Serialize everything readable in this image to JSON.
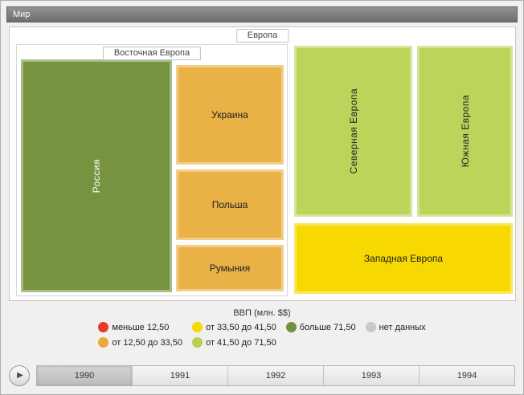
{
  "window": {
    "root_label": "Мир"
  },
  "treemap": {
    "region_label": "Европа",
    "eastern_label": "Восточная Европа",
    "tiles": {
      "russia": {
        "label": "Россия",
        "color": "#76943f"
      },
      "ukraine": {
        "label": "Украина",
        "color": "#eab146"
      },
      "poland": {
        "label": "Польша",
        "color": "#eab146"
      },
      "romania": {
        "label": "Румыния",
        "color": "#eab146"
      },
      "northern": {
        "label": "Северная Европа",
        "color": "#bdd45b"
      },
      "southern": {
        "label": "Южная Европа",
        "color": "#bdd45b"
      },
      "western": {
        "label": "Западная Европа",
        "color": "#f7d800"
      }
    }
  },
  "legend": {
    "title": "ВВП (млн. $$)",
    "items": [
      {
        "label": "меньше 12,50",
        "color": "#e63b2a"
      },
      {
        "label": "от 12,50 до 33,50",
        "color": "#e9a93c"
      },
      {
        "label": "от 33,50 до 41,50",
        "color": "#f7d800"
      },
      {
        "label": "от 41,50 до 71,50",
        "color": "#b7cf50"
      },
      {
        "label": "больше 71,50",
        "color": "#70923c"
      },
      {
        "label": "нет данных",
        "color": "#c9c9c9"
      }
    ]
  },
  "timeline": {
    "play_icon": "▶",
    "years": [
      {
        "label": "1990",
        "selected": true
      },
      {
        "label": "1991",
        "selected": false
      },
      {
        "label": "1992",
        "selected": false
      },
      {
        "label": "1993",
        "selected": false
      },
      {
        "label": "1994",
        "selected": false
      }
    ]
  },
  "chart_data": {
    "type": "treemap",
    "title": "ВВП (млн. $$)",
    "root": "Мир",
    "year": "1990",
    "legend_bins": [
      "меньше 12,50",
      "от 12,50 до 33,50",
      "от 33,50 до 41,50",
      "от 41,50 до 71,50",
      "больше 71,50",
      "нет данных"
    ],
    "groups": [
      {
        "name": "Европа",
        "children": [
          {
            "name": "Восточная Европа",
            "children": [
              {
                "name": "Россия",
                "gdp_bin": "больше 71,50"
              },
              {
                "name": "Украина",
                "gdp_bin": "от 12,50 до 33,50"
              },
              {
                "name": "Польша",
                "gdp_bin": "от 12,50 до 33,50"
              },
              {
                "name": "Румыния",
                "gdp_bin": "от 12,50 до 33,50"
              }
            ]
          },
          {
            "name": "Северная Европа",
            "gdp_bin": "от 41,50 до 71,50"
          },
          {
            "name": "Южная Европа",
            "gdp_bin": "от 41,50 до 71,50"
          },
          {
            "name": "Западная Европа",
            "gdp_bin": "от 33,50 до 41,50"
          }
        ]
      }
    ]
  }
}
